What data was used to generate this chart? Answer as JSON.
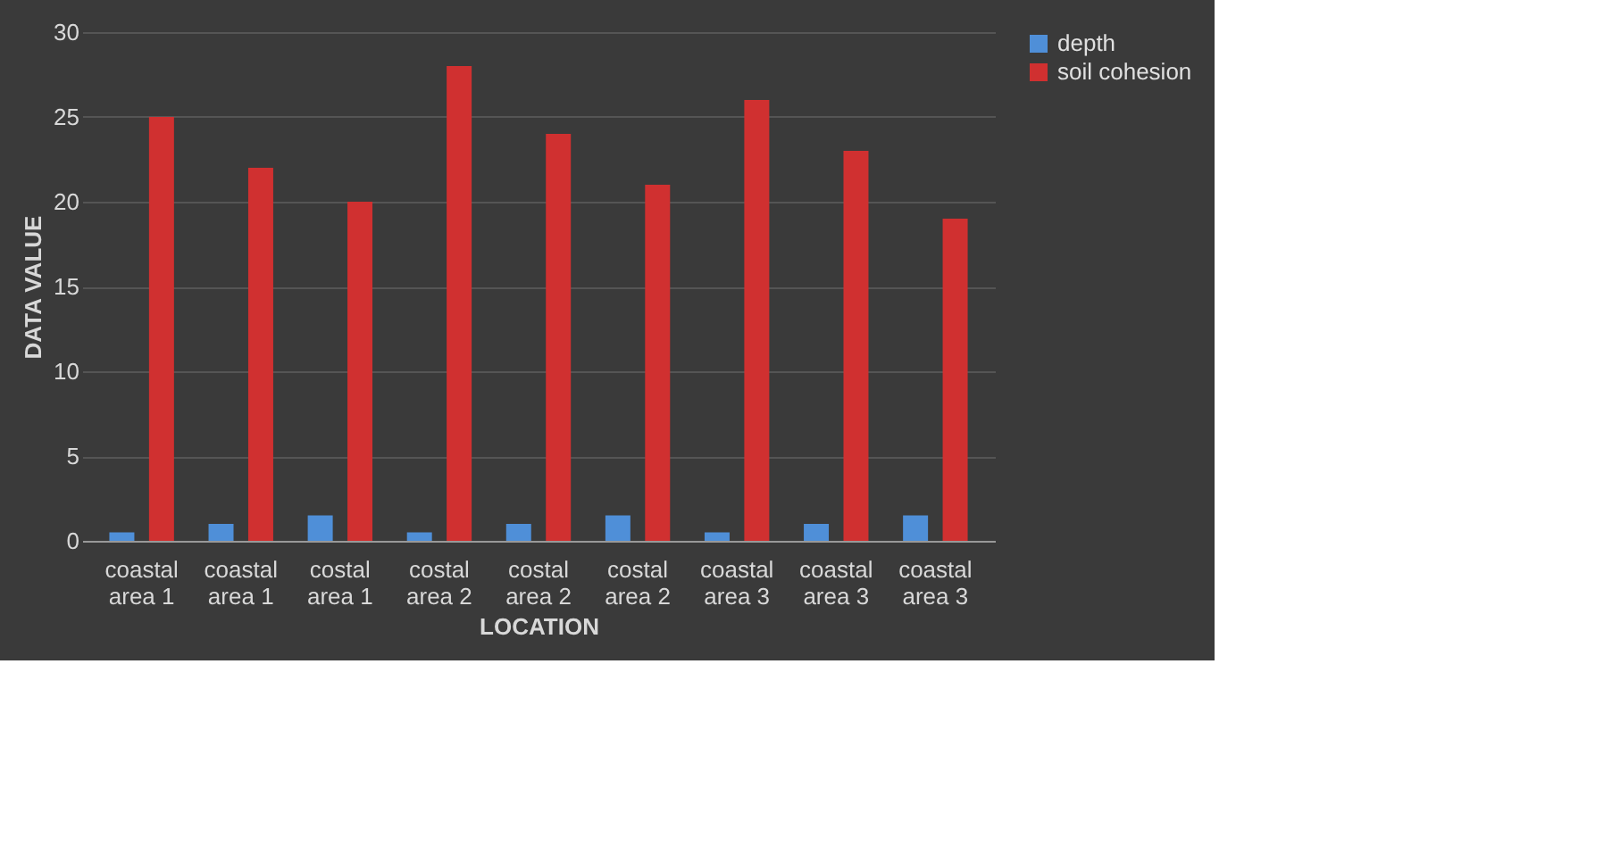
{
  "chart_data": {
    "type": "bar",
    "xlabel": "LOCATION",
    "ylabel": "DATA VALUE",
    "categories": [
      "coastal\narea 1",
      "coastal\narea 1",
      "costal\narea 1",
      "costal\narea 2",
      "costal\narea 2",
      "costal\narea 2",
      "coastal\narea 3",
      "coastal\narea 3",
      "coastal\narea 3"
    ],
    "series": [
      {
        "name": "depth",
        "color": "#4f8fd8",
        "values": [
          0.5,
          1,
          1.5,
          0.5,
          1,
          1.5,
          0.5,
          1,
          1.5
        ]
      },
      {
        "name": "soil cohesion",
        "color": "#d03030",
        "values": [
          25,
          22,
          20,
          28,
          24,
          21,
          26,
          23,
          19
        ]
      }
    ],
    "ylim": [
      0,
      30
    ],
    "yticks": [
      0,
      5,
      10,
      15,
      20,
      25,
      30
    ],
    "grid": "y",
    "legend": "right"
  }
}
